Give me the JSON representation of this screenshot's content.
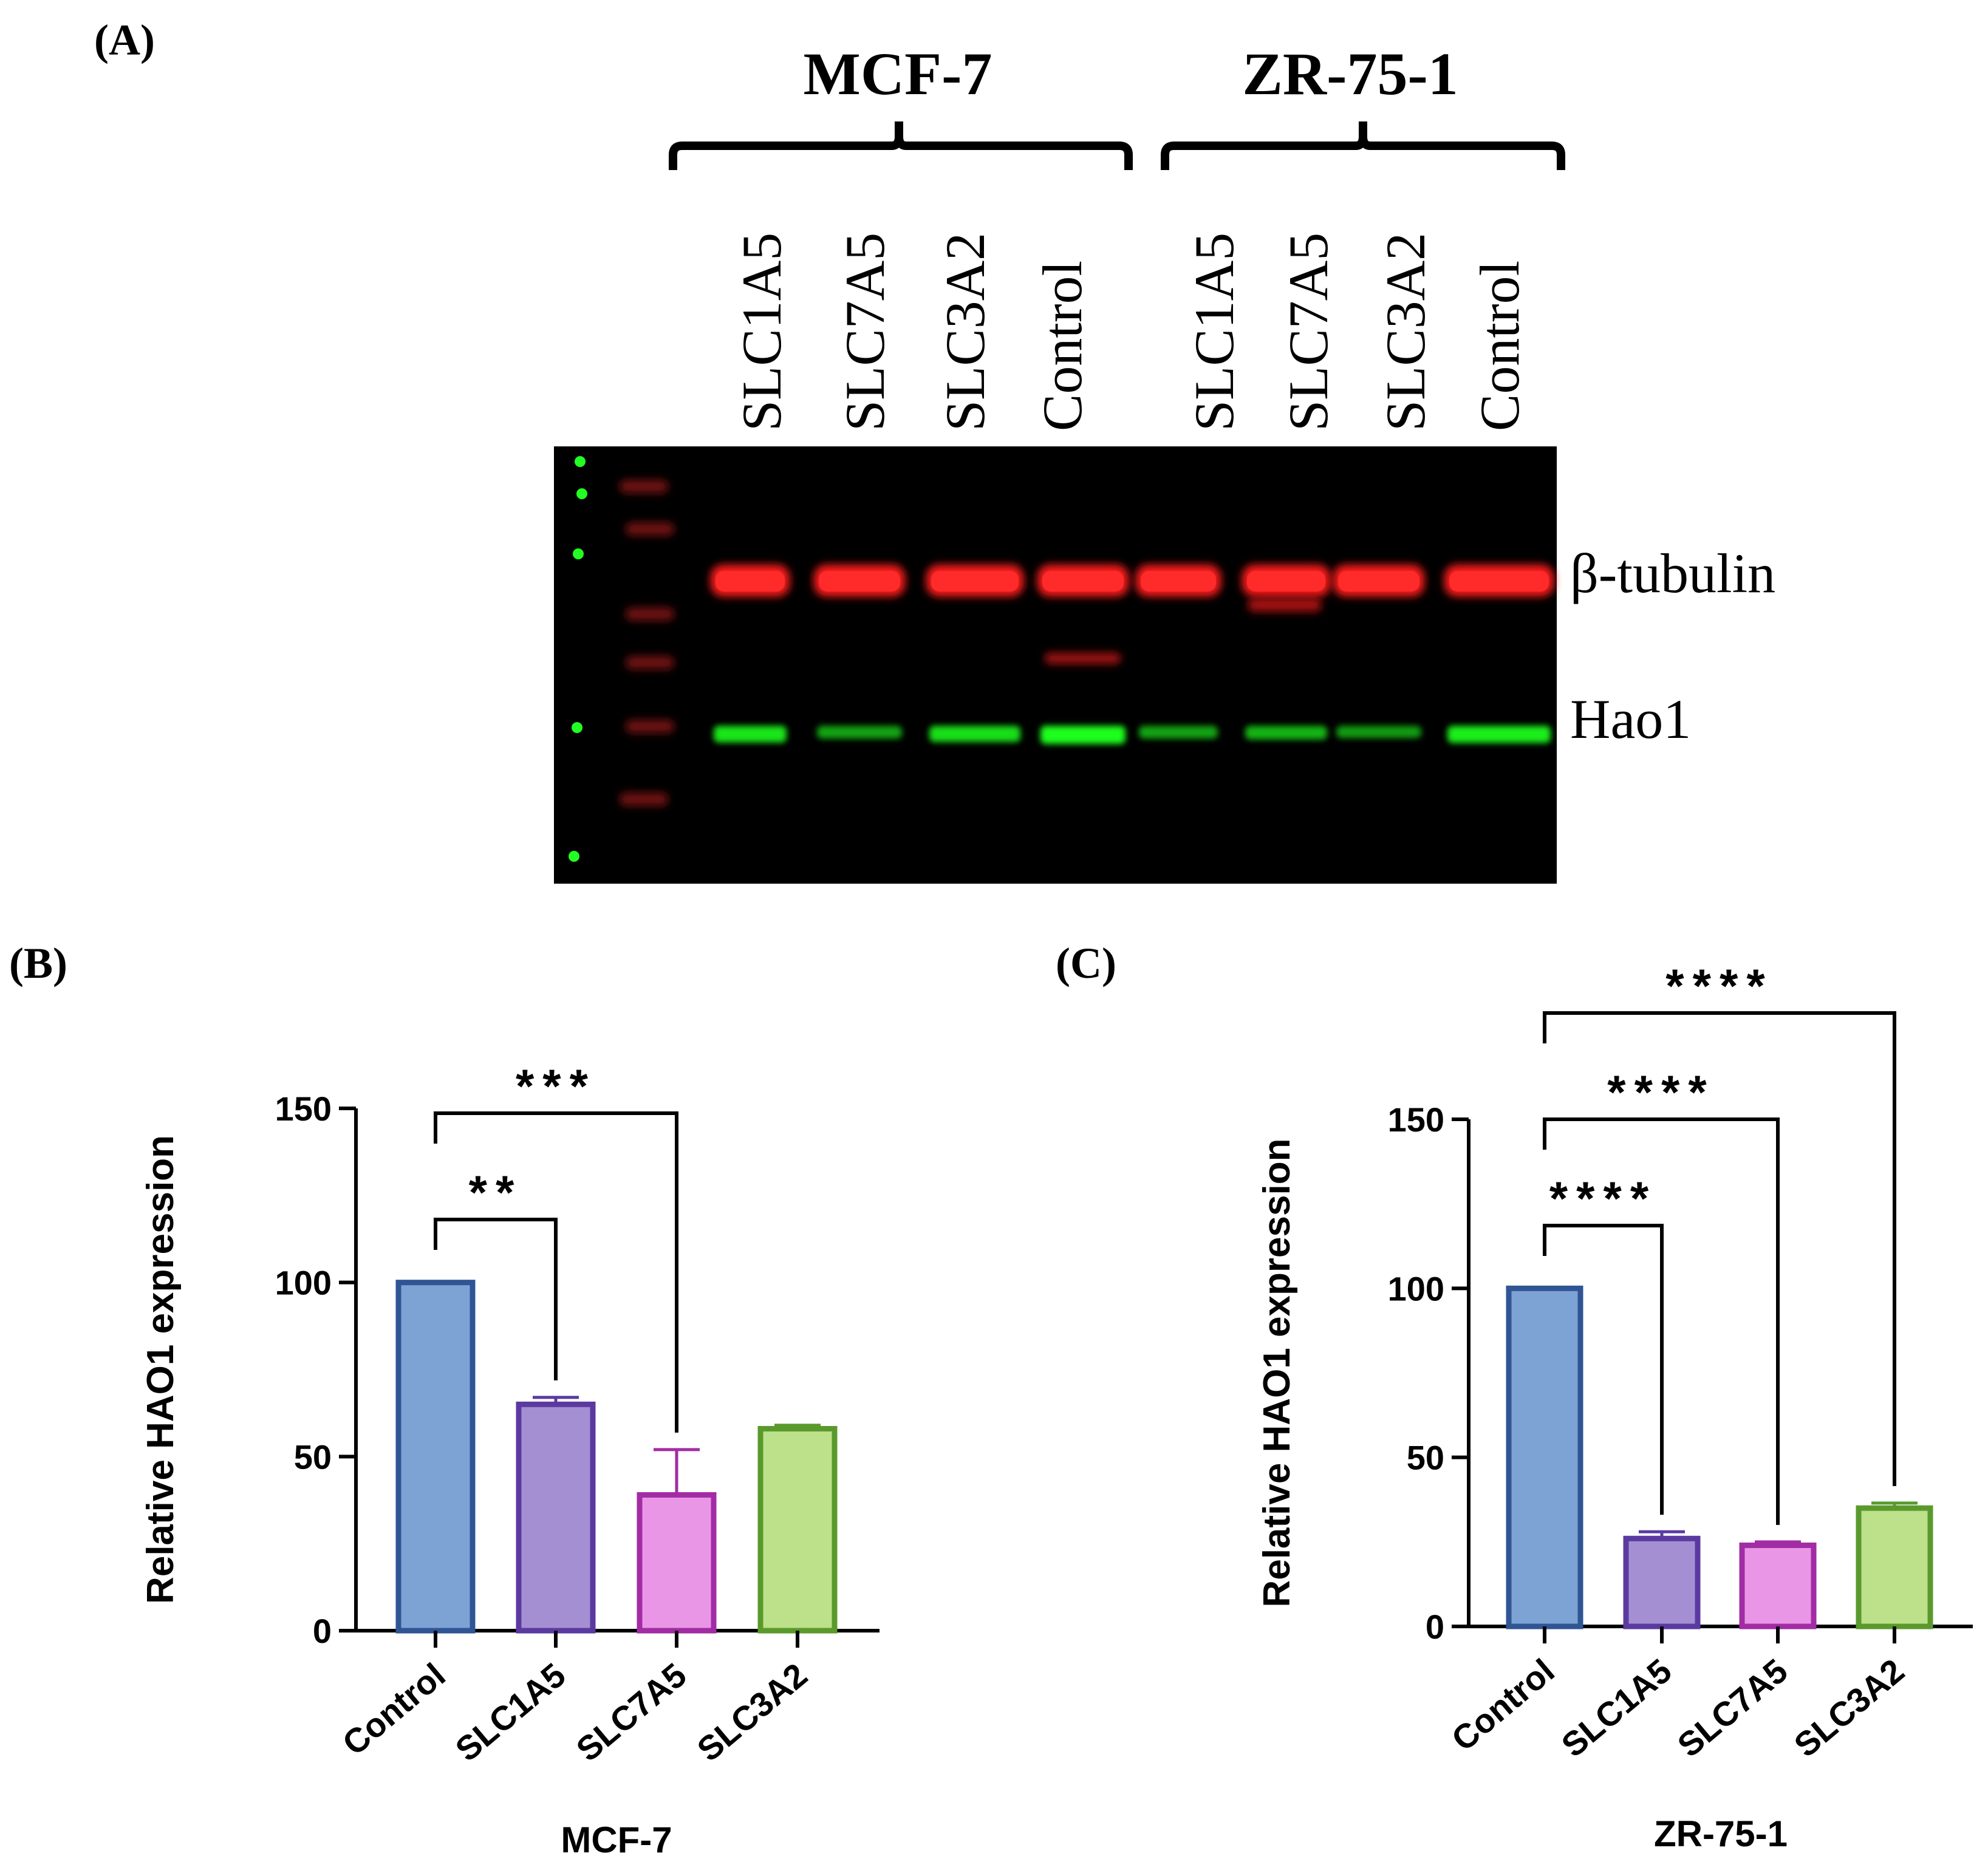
{
  "panels": {
    "a_label": "(A)",
    "b_label": "(B)",
    "c_label": "(C)"
  },
  "blot": {
    "groups": [
      "MCF-7",
      "ZR-75-1"
    ],
    "lanes": [
      "SLC1A5",
      "SLC7A5",
      "SLC3A2",
      "Control",
      "SLC1A5",
      "SLC7A5",
      "SLC3A2",
      "Control"
    ],
    "band_labels": [
      "β-tubulin",
      "Hao1"
    ],
    "tubulin_colors": [
      "#ff1a1a",
      "#ff1a1a",
      "#ff1a1a",
      "#ff1a1a",
      "#ff1a1a",
      "#ff1a1a",
      "#ff1a1a",
      "#ff1a1a"
    ],
    "hao1_intensity": [
      0.85,
      0.45,
      0.8,
      1.0,
      0.45,
      0.55,
      0.4,
      0.9
    ]
  },
  "chart_data": [
    {
      "type": "bar",
      "panel": "B",
      "categories": [
        "Control",
        "SLC1A5",
        "SLC7A5",
        "SLC3A2"
      ],
      "values": [
        100,
        65,
        39,
        58
      ],
      "errors": [
        0,
        2,
        13,
        1
      ],
      "ylabel": "Relative HAO1 expression",
      "xlabel": "MCF-7",
      "ylim": [
        0,
        150
      ],
      "yticks": [
        0,
        50,
        100,
        150
      ],
      "fill_colors": [
        "#7da2d4",
        "#a58fd3",
        "#e996e6",
        "#bde08a"
      ],
      "edge_colors": [
        "#2f5595",
        "#5b3aa0",
        "#a22ca4",
        "#5a9a2c"
      ],
      "significance": [
        {
          "from": 0,
          "to": 1,
          "label": "**"
        },
        {
          "from": 0,
          "to": 2,
          "label": "***"
        }
      ]
    },
    {
      "type": "bar",
      "panel": "C",
      "categories": [
        "Control",
        "SLC1A5",
        "SLC7A5",
        "SLC3A2"
      ],
      "values": [
        100,
        26,
        24,
        35
      ],
      "errors": [
        0,
        2,
        1,
        1.5
      ],
      "ylabel": "Relative HAO1 expression",
      "xlabel": "ZR-75-1",
      "ylim": [
        0,
        150
      ],
      "yticks": [
        0,
        50,
        100,
        150
      ],
      "fill_colors": [
        "#7da2d4",
        "#a58fd3",
        "#e996e6",
        "#bde08a"
      ],
      "edge_colors": [
        "#2f5595",
        "#5b3aa0",
        "#a22ca4",
        "#5a9a2c"
      ],
      "significance": [
        {
          "from": 0,
          "to": 1,
          "label": "****"
        },
        {
          "from": 0,
          "to": 2,
          "label": "****"
        },
        {
          "from": 0,
          "to": 3,
          "label": "****"
        }
      ]
    }
  ]
}
